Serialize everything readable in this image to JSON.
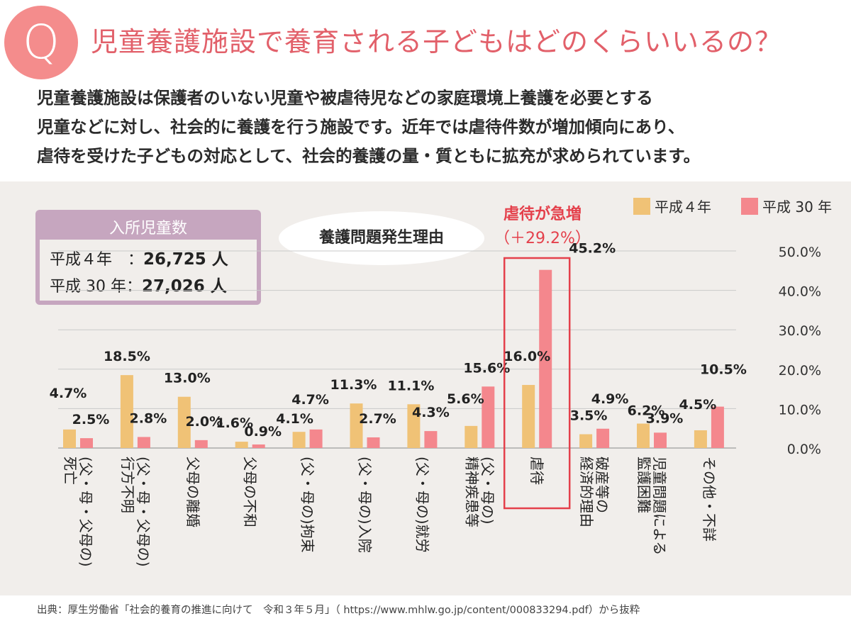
{
  "header": {
    "badge": "Q",
    "title": "児童養護施設で養育される子どもはどのくらいいるの？",
    "intro_lines": [
      "児童養護施設は保護者のいない児童や被虐待児などの家庭環境上養護を必要とする",
      "児童などに対し、社会的に養護を行う施設です。近年では虐待件数が増加傾向にあり、",
      "虐待を受けた子どもの対応として、社会的養護の量・質ともに拡充が求められています。"
    ]
  },
  "admissions": {
    "title": "入所児童数",
    "rows": [
      {
        "label": "平成４年　：",
        "value": "26,725 人"
      },
      {
        "label": "平成 30 年：",
        "value": "27,026 人"
      }
    ]
  },
  "reason_label": "養護問題発生理由",
  "callout": {
    "line1": "虐待が急増",
    "line2": "（＋29.2%）"
  },
  "colors": {
    "h4": "#f0c276",
    "h30": "#f4878d",
    "accent": "#e4404b",
    "grid": "#c9c9c9"
  },
  "chart_data": {
    "type": "bar",
    "title": "養護問題発生理由",
    "ylim": [
      0,
      50
    ],
    "yticks": [
      "0.0%",
      "10.0%",
      "20.0%",
      "30.0%",
      "40.0%",
      "50.0%"
    ],
    "categories": [
      "(父・母・父母の)死亡",
      "(父・母・父母の)行方不明",
      "父母の離婚",
      "父母の不和",
      "(父・母の)拘束",
      "(父・母の)入院",
      "(父・母の)就労",
      "(父・母の)精神疾患等",
      "虐待",
      "破産等の経済的理由",
      "児童問題による監護困難",
      "その他・不詳"
    ],
    "category_lines": [
      [
        "(父・母・父母の)",
        "死亡"
      ],
      [
        "(父・母・父母の)",
        "行方不明"
      ],
      [
        "父母の離婚"
      ],
      [
        "父母の不和"
      ],
      [
        "(父・母の)拘束"
      ],
      [
        "(父・母の)入院"
      ],
      [
        "(父・母の)就労"
      ],
      [
        "(父・母の)",
        "精神疾患等"
      ],
      [
        "虐待"
      ],
      [
        "破産等の",
        "経済的理由"
      ],
      [
        "児童問題による",
        "監護困難"
      ],
      [
        "その他・不詳"
      ]
    ],
    "series": [
      {
        "name": "平成４年",
        "values": [
          4.7,
          18.5,
          13.0,
          1.6,
          4.1,
          11.3,
          11.1,
          5.6,
          16.0,
          3.5,
          6.2,
          4.5
        ],
        "labels": [
          "4.7%",
          "18.5%",
          "13.0%",
          "1.6%",
          "4.1%",
          "11.3%",
          "11.1%",
          "5.6%",
          "16.0%",
          "3.5%",
          "6.2%",
          "4.5%"
        ]
      },
      {
        "name": "平成 30 年",
        "values": [
          2.5,
          2.8,
          2.0,
          0.9,
          4.7,
          2.7,
          4.3,
          15.6,
          45.2,
          4.9,
          3.9,
          10.5
        ],
        "labels": [
          "2.5%",
          "2.8%",
          "2.0%",
          "0.9%",
          "4.7%",
          "2.7%",
          "4.3%",
          "15.6%",
          "45.2%",
          "4.9%",
          "3.9%",
          "10.5%"
        ]
      }
    ]
  },
  "source": "出典：厚生労働省「社会的養育の推進に向けて　令和３年５月」（ https://www.mhlw.go.jp/content/000833294.pdf）から抜粋"
}
